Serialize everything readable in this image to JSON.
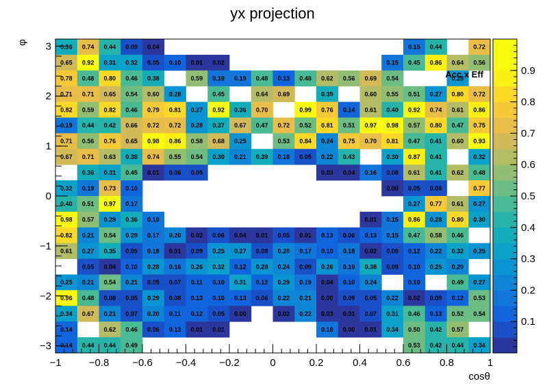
{
  "chart_data": {
    "type": "heatmap",
    "title": "yx projection",
    "xlabel": "cosθ",
    "ylabel": "φ",
    "stat_label": "Acc x Eff",
    "xlim": [
      -1,
      1
    ],
    "ylim": [
      -3.14159,
      3.14159
    ],
    "zlim": [
      0,
      1
    ],
    "x_ticks": [
      -1,
      -0.8,
      -0.6,
      -0.4,
      -0.2,
      0,
      0.2,
      0.4,
      0.6,
      0.8,
      1
    ],
    "x_tick_labels": [
      "−1",
      "−0.8",
      "−0.6",
      "−0.4",
      "−0.2",
      "0",
      "0.2",
      "0.4",
      "0.6",
      "0.8",
      "1"
    ],
    "y_ticks": [
      -3,
      -2,
      -1,
      0,
      1,
      2,
      3
    ],
    "y_tick_labels": [
      "−3",
      "−2",
      "−1",
      "0",
      "1",
      "2",
      "3"
    ],
    "z_ticks": [
      0.1,
      0.2,
      0.3,
      0.4,
      0.5,
      0.6,
      0.7,
      0.8,
      0.9
    ],
    "z_tick_labels": [
      "0.1",
      "0.2",
      "0.3",
      "0.4",
      "0.5",
      "0.6",
      "0.7",
      "0.8",
      "0.9"
    ],
    "nx": 20,
    "ny": 20,
    "rows_top_to_bottom": [
      [
        0.36,
        0.74,
        0.44,
        0.09,
        0.04,
        null,
        null,
        null,
        null,
        null,
        null,
        null,
        null,
        null,
        null,
        null,
        0.15,
        0.44,
        null,
        0.72
      ],
      [
        0.65,
        0.92,
        0.31,
        0.32,
        0.05,
        0.1,
        0.01,
        0.02,
        null,
        null,
        null,
        null,
        null,
        null,
        null,
        0.15,
        0.45,
        0.86,
        0.64,
        0.56
      ],
      [
        0.78,
        0.48,
        0.8,
        0.46,
        0.38,
        null,
        0.59,
        0.19,
        0.19,
        0.48,
        0.13,
        0.48,
        0.62,
        0.56,
        0.69,
        0.54,
        null,
        null,
        0.28,
        null
      ],
      [
        0.71,
        0.71,
        0.65,
        0.54,
        0.6,
        0.28,
        null,
        0.45,
        null,
        0.64,
        0.69,
        null,
        0.39,
        null,
        0.6,
        0.55,
        0.51,
        0.27,
        0.8,
        0.72
      ],
      [
        0.82,
        0.59,
        0.82,
        0.46,
        0.79,
        0.81,
        0.27,
        0.92,
        0.36,
        0.7,
        null,
        0.99,
        0.76,
        0.14,
        0.61,
        0.4,
        0.92,
        0.74,
        0.61,
        0.86
      ],
      [
        0.19,
        0.44,
        0.42,
        0.66,
        0.72,
        0.72,
        0.28,
        0.37,
        0.67,
        0.47,
        0.72,
        0.52,
        0.81,
        0.51,
        0.97,
        0.98,
        0.57,
        0.8,
        0.47,
        0.75
      ],
      [
        0.71,
        0.56,
        0.76,
        0.65,
        0.98,
        0.86,
        0.58,
        0.68,
        0.25,
        null,
        0.53,
        0.84,
        0.24,
        0.75,
        0.7,
        0.81,
        0.47,
        0.41,
        0.6,
        0.93
      ],
      [
        0.67,
        0.71,
        0.63,
        0.38,
        0.74,
        0.55,
        0.54,
        0.3,
        0.21,
        0.39,
        0.18,
        0.05,
        0.22,
        0.43,
        null,
        0.3,
        0.87,
        0.41,
        null,
        0.32
      ],
      [
        null,
        0.36,
        0.31,
        0.45,
        0.01,
        0.06,
        0.05,
        null,
        null,
        null,
        null,
        null,
        0.03,
        0.04,
        0.16,
        0.08,
        0.61,
        0.41,
        0.62,
        0.48
      ],
      [
        0.32,
        0.19,
        0.73,
        0.1,
        null,
        null,
        null,
        null,
        null,
        null,
        null,
        null,
        null,
        null,
        null,
        0.0,
        0.05,
        0.08,
        null,
        0.77
      ],
      [
        0.4,
        0.51,
        0.97,
        0.17,
        null,
        null,
        null,
        null,
        null,
        null,
        null,
        null,
        null,
        null,
        null,
        null,
        0.27,
        0.77,
        0.61,
        0.27
      ],
      [
        0.98,
        0.57,
        0.29,
        0.36,
        0.19,
        null,
        null,
        null,
        null,
        null,
        null,
        null,
        null,
        null,
        0.01,
        0.15,
        0.86,
        0.28,
        0.8,
        0.3
      ],
      [
        0.82,
        0.21,
        0.54,
        0.29,
        0.17,
        0.2,
        0.02,
        0.06,
        0.04,
        0.01,
        0.05,
        0.01,
        0.13,
        0.06,
        0.13,
        0.15,
        0.47,
        0.58,
        0.46,
        null
      ],
      [
        0.61,
        0.27,
        0.35,
        0.05,
        0.18,
        0.01,
        0.09,
        0.25,
        0.27,
        0.08,
        0.2,
        0.17,
        0.1,
        0.18,
        0.02,
        0.09,
        0.12,
        0.22,
        0.32,
        0.25
      ],
      [
        null,
        0.05,
        0.04,
        0.1,
        0.28,
        0.16,
        0.26,
        0.32,
        0.12,
        0.28,
        0.24,
        0.09,
        0.26,
        0.19,
        0.38,
        0.09,
        0.1,
        0.25,
        0.2,
        null
      ],
      [
        0.25,
        0.21,
        0.54,
        0.21,
        0.05,
        0.07,
        0.11,
        0.1,
        0.31,
        0.12,
        0.29,
        0.19,
        0.04,
        0.1,
        0.24,
        null,
        0.1,
        null,
        0.49,
        0.27
      ],
      [
        0.96,
        0.48,
        0.08,
        0.05,
        0.29,
        0.08,
        0.13,
        0.1,
        0.13,
        0.06,
        0.22,
        0.21,
        0.0,
        0.09,
        0.05,
        0.22,
        0.02,
        0.09,
        0.12,
        0.53
      ],
      [
        0.34,
        0.67,
        0.21,
        0.07,
        0.2,
        0.11,
        0.12,
        0.05,
        0.0,
        null,
        0.02,
        0.22,
        0.03,
        0.01,
        0.07,
        0.31,
        0.46,
        0.13,
        0.52,
        0.54
      ],
      [
        0.14,
        null,
        0.62,
        0.46,
        0.06,
        0.13,
        0.01,
        0.01,
        null,
        null,
        null,
        null,
        0.18,
        0.0,
        0.01,
        0.34,
        0.5,
        0.42,
        0.57,
        null
      ],
      [
        0.14,
        0.44,
        0.44,
        0.49,
        null,
        null,
        null,
        null,
        null,
        null,
        null,
        null,
        null,
        null,
        null,
        null,
        0.53,
        0.42,
        0.44,
        0.34
      ]
    ]
  }
}
